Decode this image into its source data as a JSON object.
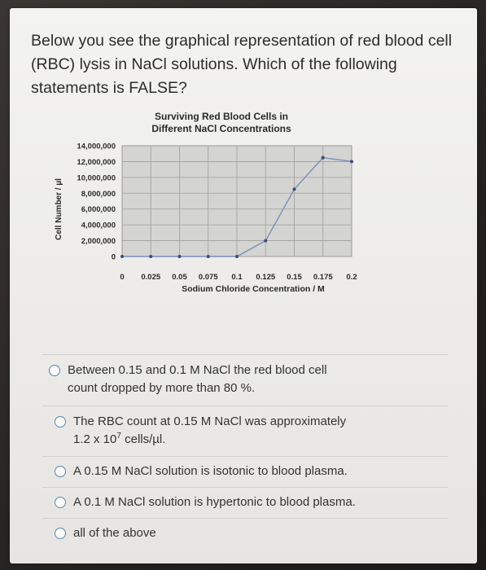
{
  "question": {
    "text": "Below you see the graphical representation of red blood cell (RBC) lysis in NaCl solutions. Which of the following statements is FALSE?"
  },
  "chart_data": {
    "type": "line",
    "title": "Surviving Red Blood Cells in\nDifferent NaCl Concentrations",
    "xlabel": "Sodium Chloride Concentration / M",
    "ylabel": "Cell Number / µl",
    "x_ticks": [
      "0",
      "0.025",
      "0.05",
      "0.075",
      "0.1",
      "0.125",
      "0.15",
      "0.175",
      "0.2"
    ],
    "y_ticks": [
      "0",
      "2,000,000",
      "4,000,000",
      "6,000,000",
      "8,000,000",
      "10,000,000",
      "12,000,000",
      "14,000,000"
    ],
    "xlim": [
      0,
      0.2
    ],
    "ylim": [
      0,
      14000000
    ],
    "grid": true,
    "series": [
      {
        "x": [
          0,
          0.025,
          0.05,
          0.075,
          0.1,
          0.125,
          0.15,
          0.175
        ],
        "y": [
          0,
          0,
          0,
          0,
          0,
          2000000,
          8500000,
          12500000
        ]
      },
      {
        "x": [
          0.175,
          0.2
        ],
        "y": [
          12500000,
          12000000
        ]
      }
    ],
    "colors": {
      "line": "#7a8fb8",
      "marker": "#3b4a7a",
      "plot_bg": "#d4d4d2",
      "grid": "#9e9e9c"
    }
  },
  "options": [
    {
      "text": "Between 0.15 and 0.1 M NaCl the red blood cell\ncount dropped by more than 80 %."
    },
    {
      "text_pre": "The RBC count at 0.15 M NaCl was approximately\n1.2 x 10",
      "sup": "7",
      "text_post": " cells/µl."
    },
    {
      "text": "A 0.15 M NaCl solution is isotonic to blood plasma."
    },
    {
      "text": "A 0.1 M NaCl solution is hypertonic to blood plasma."
    },
    {
      "text": "all of the above"
    }
  ]
}
